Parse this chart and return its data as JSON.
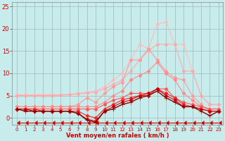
{
  "background_color": "#c8ecec",
  "grid_color": "#99bbbb",
  "xlabel": "Vent moyen/en rafales ( km/h )",
  "xlim": [
    -0.5,
    23.5
  ],
  "ylim": [
    -1.5,
    26
  ],
  "yticks": [
    0,
    5,
    10,
    15,
    20,
    25
  ],
  "xticks": [
    0,
    1,
    2,
    3,
    4,
    5,
    6,
    7,
    8,
    9,
    10,
    11,
    12,
    13,
    14,
    15,
    16,
    17,
    18,
    19,
    20,
    21,
    22,
    23
  ],
  "series": [
    {
      "x": [
        0,
        1,
        2,
        3,
        4,
        5,
        6,
        7,
        8,
        9,
        10,
        11,
        12,
        13,
        14,
        15,
        16,
        17,
        18,
        19,
        20,
        21,
        22,
        23
      ],
      "y": [
        5.2,
        5.2,
        5.2,
        5.2,
        5.2,
        5.2,
        5.3,
        5.5,
        5.8,
        6.0,
        7.0,
        8.5,
        10.0,
        13.0,
        16.5,
        15.5,
        21.0,
        21.5,
        16.5,
        16.5,
        10.5,
        5.0,
        3.0,
        3.0
      ],
      "color": "#ffbbbb",
      "marker": "D",
      "markersize": 2.5,
      "linewidth": 0.8,
      "zorder": 1
    },
    {
      "x": [
        0,
        1,
        2,
        3,
        4,
        5,
        6,
        7,
        8,
        9,
        10,
        11,
        12,
        13,
        14,
        15,
        16,
        17,
        18,
        19,
        20,
        21,
        22,
        23
      ],
      "y": [
        5.0,
        5.0,
        5.0,
        5.0,
        5.0,
        5.1,
        5.2,
        5.4,
        5.6,
        5.8,
        6.5,
        7.5,
        8.5,
        10.5,
        13.0,
        15.0,
        16.5,
        16.5,
        16.5,
        10.5,
        10.5,
        5.0,
        3.0,
        3.0
      ],
      "color": "#ffaaaa",
      "marker": "D",
      "markersize": 2.5,
      "linewidth": 0.8,
      "zorder": 2
    },
    {
      "comment": "peaked line - 13~16.5, 14~16.5",
      "x": [
        0,
        1,
        2,
        3,
        4,
        5,
        6,
        7,
        8,
        9,
        10,
        11,
        12,
        13,
        14,
        15,
        16,
        17,
        18,
        19,
        20,
        21,
        22,
        23
      ],
      "y": [
        2.5,
        2.5,
        2.5,
        2.5,
        2.5,
        2.5,
        2.5,
        3.0,
        4.5,
        3.5,
        5.5,
        7.0,
        8.0,
        13.0,
        13.0,
        15.5,
        13.0,
        10.5,
        9.0,
        8.5,
        5.0,
        3.0,
        1.5,
        1.5
      ],
      "color": "#ff9999",
      "marker": "D",
      "markersize": 2.5,
      "linewidth": 0.8,
      "zorder": 3
    },
    {
      "x": [
        0,
        1,
        2,
        3,
        4,
        5,
        6,
        7,
        8,
        9,
        10,
        11,
        12,
        13,
        14,
        15,
        16,
        17,
        18,
        19,
        20,
        21,
        22,
        23
      ],
      "y": [
        2.5,
        2.5,
        2.5,
        2.5,
        2.5,
        2.5,
        2.5,
        2.5,
        2.5,
        2.5,
        3.5,
        5.0,
        6.0,
        8.5,
        9.5,
        10.5,
        12.5,
        10.0,
        8.5,
        5.5,
        4.0,
        2.5,
        2.0,
        2.0
      ],
      "color": "#ff8888",
      "marker": "D",
      "markersize": 2.5,
      "linewidth": 0.8,
      "zorder": 4
    },
    {
      "x": [
        0,
        1,
        2,
        3,
        4,
        5,
        6,
        7,
        8,
        9,
        10,
        11,
        12,
        13,
        14,
        15,
        16,
        17,
        18,
        19,
        20,
        21,
        22,
        23
      ],
      "y": [
        2.0,
        2.0,
        2.0,
        2.0,
        2.0,
        2.0,
        2.0,
        2.0,
        2.0,
        2.0,
        3.0,
        4.0,
        4.5,
        5.5,
        5.5,
        5.5,
        6.5,
        6.5,
        4.5,
        3.5,
        3.0,
        2.5,
        2.0,
        2.0
      ],
      "color": "#ff5555",
      "marker": "D",
      "markersize": 2.5,
      "linewidth": 0.8,
      "zorder": 5
    },
    {
      "x": [
        0,
        1,
        2,
        3,
        4,
        5,
        6,
        7,
        8,
        9,
        10,
        11,
        12,
        13,
        14,
        15,
        16,
        17,
        18,
        19,
        20,
        21,
        22,
        23
      ],
      "y": [
        2.0,
        2.0,
        2.0,
        1.5,
        1.5,
        1.5,
        1.5,
        1.5,
        0.5,
        0.0,
        2.0,
        3.0,
        4.0,
        4.5,
        5.0,
        5.0,
        6.5,
        5.5,
        4.5,
        3.0,
        2.5,
        2.0,
        1.5,
        1.5
      ],
      "color": "#ee2222",
      "marker": "D",
      "markersize": 2.5,
      "linewidth": 0.8,
      "zorder": 6
    },
    {
      "x": [
        0,
        1,
        2,
        3,
        4,
        5,
        6,
        7,
        8,
        9,
        10,
        11,
        12,
        13,
        14,
        15,
        16,
        17,
        18,
        19,
        20,
        21,
        22,
        23
      ],
      "y": [
        2.0,
        2.0,
        1.5,
        1.5,
        1.5,
        1.5,
        1.5,
        1.0,
        -0.3,
        -0.7,
        1.5,
        2.5,
        3.5,
        4.0,
        5.0,
        5.5,
        6.5,
        5.0,
        4.0,
        2.5,
        2.5,
        2.0,
        1.5,
        1.5
      ],
      "color": "#cc0000",
      "marker": "D",
      "markersize": 2.5,
      "linewidth": 0.8,
      "zorder": 7
    },
    {
      "x": [
        0,
        1,
        2,
        3,
        4,
        5,
        6,
        7,
        8,
        9,
        10,
        11,
        12,
        13,
        14,
        15,
        16,
        17,
        18,
        19,
        20,
        21,
        22,
        23
      ],
      "y": [
        2.0,
        1.5,
        1.5,
        1.5,
        1.5,
        1.5,
        1.5,
        1.0,
        -0.5,
        -1.0,
        1.5,
        2.0,
        3.0,
        3.5,
        4.5,
        5.0,
        6.0,
        4.5,
        3.5,
        2.5,
        2.5,
        1.5,
        0.5,
        1.5
      ],
      "color": "#880000",
      "marker": "+",
      "markersize": 4,
      "linewidth": 1.0,
      "zorder": 8
    }
  ],
  "arrow_line": {
    "x": [
      0,
      1,
      2,
      3,
      4,
      5,
      6,
      7,
      8,
      9,
      10,
      11,
      12,
      13,
      14,
      15,
      16,
      17,
      18,
      19,
      20,
      21,
      22,
      23
    ],
    "y": [
      -1.0,
      -1.0,
      -1.0,
      -1.0,
      -1.0,
      -1.0,
      -1.0,
      -1.0,
      -1.0,
      -1.0,
      -1.0,
      -1.0,
      -1.0,
      -1.0,
      -1.0,
      -1.0,
      -1.0,
      -1.0,
      -1.0,
      -1.0,
      -1.0,
      -1.0,
      -1.0,
      -1.0
    ],
    "color": "#cc0000",
    "marker": 4,
    "markersize": 4,
    "linewidth": 0.8
  }
}
